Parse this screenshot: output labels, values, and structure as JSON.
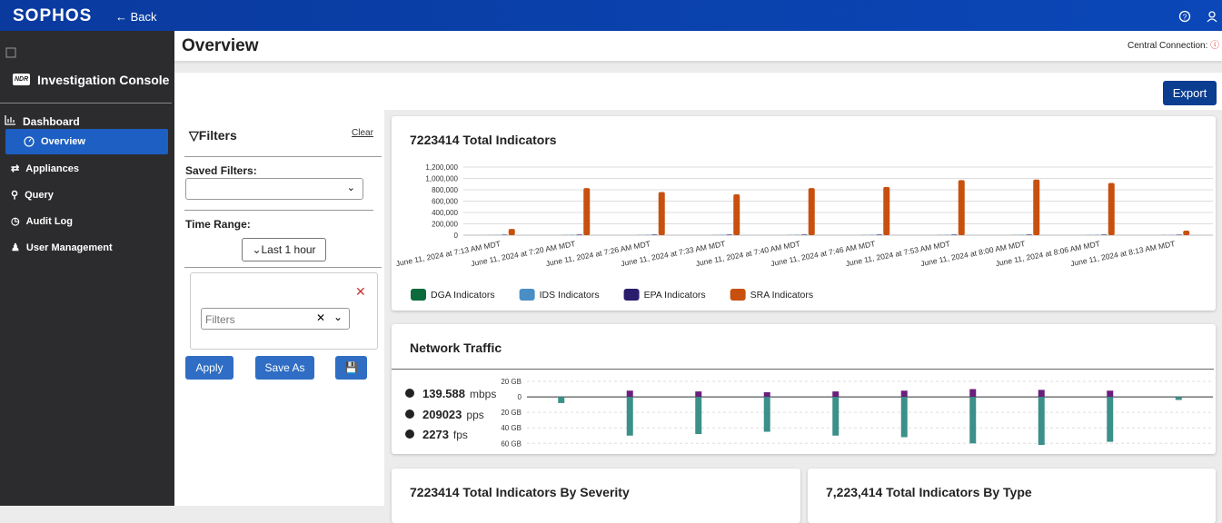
{
  "topbar": {
    "brand": "SOPHOS",
    "back": "Back"
  },
  "sidebar": {
    "badge": "NDR",
    "title": "Investigation Console",
    "nav": [
      "Dashboard",
      "Overview",
      "Appliances",
      "Query",
      "Audit Log",
      "User Management"
    ]
  },
  "header": {
    "title": "Overview",
    "connection": "Central Connection:"
  },
  "toolbar": {
    "export": "Export"
  },
  "filters": {
    "title": "Filters",
    "clear": "Clear",
    "saved_filters_label": "Saved Filters:",
    "time_range_label": "Time Range:",
    "time_range": "Last 1 hour",
    "filter_placeholder": "Filters",
    "buttons": [
      "Apply",
      "Save As"
    ]
  },
  "chart_data": [
    {
      "type": "bar",
      "title": "7223414 Total Indicators",
      "categories": [
        "June 11, 2024 at 7:13 AM MDT",
        "June 11, 2024 at 7:20 AM MDT",
        "June 11, 2024 at 7:26 AM MDT",
        "June 11, 2024 at 7:33 AM MDT",
        "June 11, 2024 at 7:40 AM MDT",
        "June 11, 2024 at 7:46 AM MDT",
        "June 11, 2024 at 7:53 AM MDT",
        "June 11, 2024 at 8:00 AM MDT",
        "June 11, 2024 at 8:06 AM MDT",
        "June 11, 2024 at 8:13 AM MDT"
      ],
      "series": [
        {
          "name": "DGA Indicators",
          "color": "#0b6b3a",
          "values": [
            2000,
            3000,
            3000,
            3000,
            3000,
            3000,
            3000,
            3000,
            3000,
            2000
          ]
        },
        {
          "name": "IDS Indicators",
          "color": "#4a8fc4",
          "values": [
            5000,
            6000,
            6000,
            6000,
            6000,
            6000,
            6000,
            6000,
            6000,
            5000
          ]
        },
        {
          "name": "EPA Indicators",
          "color": "#2a1d6b",
          "values": [
            8000,
            10000,
            10000,
            10000,
            10000,
            10000,
            10000,
            10000,
            10000,
            8000
          ]
        },
        {
          "name": "SRA Indicators",
          "color": "#c8500f",
          "values": [
            110000,
            830000,
            760000,
            720000,
            830000,
            850000,
            970000,
            980000,
            920000,
            80000
          ]
        }
      ],
      "ylim": [
        0,
        1200000
      ],
      "yticks": [
        0,
        {
          "value": 200000,
          "label": "200,000"
        },
        {
          "value": 400000,
          "label": "400,000"
        },
        {
          "value": 600000,
          "label": "600,000"
        },
        {
          "value": 800000,
          "label": "800,000"
        },
        {
          "value": 1000000,
          "label": "1,000,000"
        },
        {
          "value": 1200000,
          "label": "1,200,000"
        }
      ],
      "grid": true
    },
    {
      "type": "stacked_bar",
      "title": "Network Traffic",
      "categories": [
        null,
        null,
        null,
        null,
        null,
        null,
        null,
        null,
        null,
        null
      ],
      "series": [
        {
          "color": "#3b9089",
          "values": [
            -8,
            -50,
            -48,
            -45,
            -50,
            -52,
            -60,
            -62,
            -58,
            -4
          ]
        },
        {
          "color": "#6b1f7c",
          "values": [
            0,
            8,
            7,
            6,
            7,
            8,
            10,
            9,
            8,
            0
          ]
        }
      ],
      "ylim": [
        -62,
        20
      ],
      "yticks": [
        {
          "value": 20,
          "label": "20 GB"
        },
        0,
        {
          "value": -20,
          "label": "20 GB"
        },
        {
          "value": -40,
          "label": "40 GB"
        },
        {
          "value": -60,
          "label": "60 GB"
        }
      ],
      "grid": true
    }
  ],
  "traffic_stats": [
    {
      "value": 139.588,
      "unit": "mbps"
    },
    {
      "value": 209023,
      "unit": "pps"
    },
    {
      "value": 2273,
      "unit": "fps"
    }
  ],
  "cards": [
    "7223414 Total Indicators By Severity",
    "7,223,414 Total Indicators By Type"
  ]
}
